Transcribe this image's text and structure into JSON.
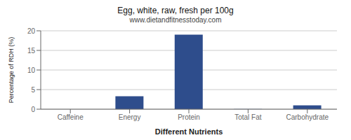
{
  "chart_data": {
    "type": "bar",
    "title": "Egg, white, raw, fresh per 100g",
    "subtitle": "www.dietandfitnesstoday.com",
    "xlabel": "Different Nutrients",
    "ylabel": "Percentage of RDH (%)",
    "categories": [
      "Caffeine",
      "Energy",
      "Protein",
      "Total Fat",
      "Carbohydrate"
    ],
    "values": [
      0,
      3.3,
      19.0,
      0.05,
      1.0
    ],
    "color": "#2e4d8c",
    "ylim": [
      0,
      20
    ],
    "yticks": [
      0,
      5,
      10,
      15,
      20
    ],
    "grid": true
  }
}
